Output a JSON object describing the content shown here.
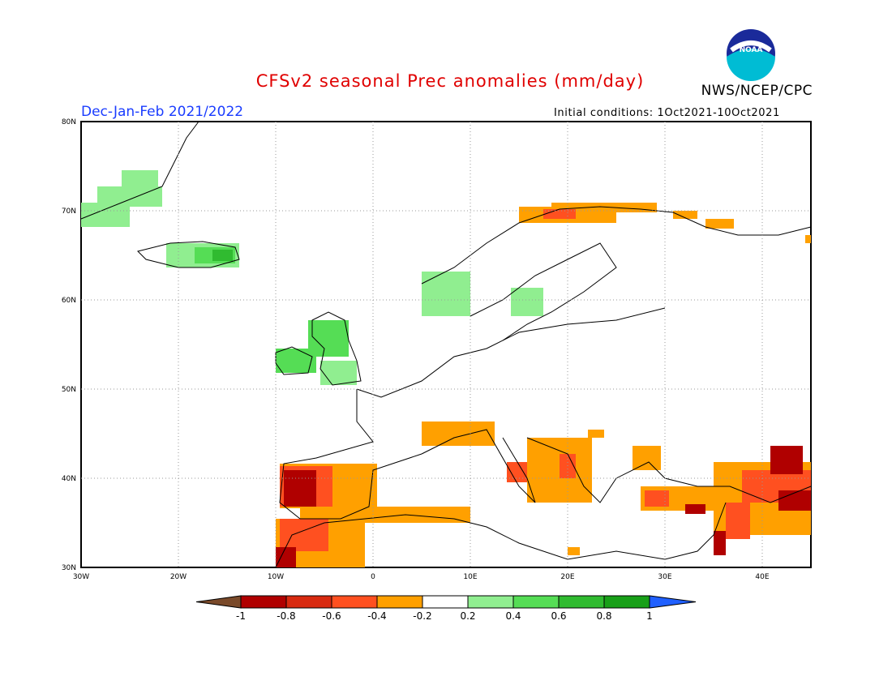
{
  "title": "CFSv2 seasonal Prec anomalies (mm/day)",
  "organization": "NWS/NCEP/CPC",
  "logo_text": "NOAA",
  "season": "Dec-Jan-Feb 2021/2022",
  "initial_conditions": "Initial conditions: 1Oct2021-10Oct2021",
  "lat_ticks": [
    "80N",
    "70N",
    "60N",
    "50N",
    "40N",
    "30N"
  ],
  "lon_ticks": [
    "30W",
    "20W",
    "10W",
    "0",
    "10E",
    "20E",
    "30E",
    "40E"
  ],
  "colorbar": {
    "labels": [
      "-1",
      "-0.8",
      "-0.6",
      "-0.4",
      "-0.2",
      "0.2",
      "0.4",
      "0.6",
      "0.8",
      "1"
    ],
    "colors": [
      "#7a4a2a",
      "#b00000",
      "#d82a10",
      "#ff5020",
      "#ffa000",
      "#ffffff",
      "#90ee90",
      "#55dd55",
      "#30bb30",
      "#18a018",
      "#2060ff"
    ]
  },
  "map_data": {
    "lon_range": [
      -30,
      45
    ],
    "lat_range": [
      30,
      80
    ],
    "anomaly_regions": [
      {
        "region": "Greenland east coast",
        "anomaly": "0.2 to 0.4"
      },
      {
        "region": "Iceland",
        "anomaly": "0.2 to 0.8"
      },
      {
        "region": "Ireland and Britain",
        "anomaly": "0.2 to 0.6"
      },
      {
        "region": "Western Norway",
        "anomaly": "0.2 to 0.4"
      },
      {
        "region": "Northern Norway / Kola coast",
        "anomaly": "-0.6 to -0.2"
      },
      {
        "region": "Iberian Peninsula",
        "anomaly": "-0.8 to -0.2"
      },
      {
        "region": "Morocco / Alboran",
        "anomaly": "-0.8 to -0.2"
      },
      {
        "region": "Northern Italy / Adriatic",
        "anomaly": "-0.4 to -0.2"
      },
      {
        "region": "Balkans / Greece",
        "anomaly": "-0.6 to -0.2"
      },
      {
        "region": "Turkey / Eastern Mediterranean",
        "anomaly": "-0.8 to -0.2"
      },
      {
        "region": "Caucasus / Middle East",
        "anomaly": "-0.8 to -0.2"
      }
    ]
  }
}
